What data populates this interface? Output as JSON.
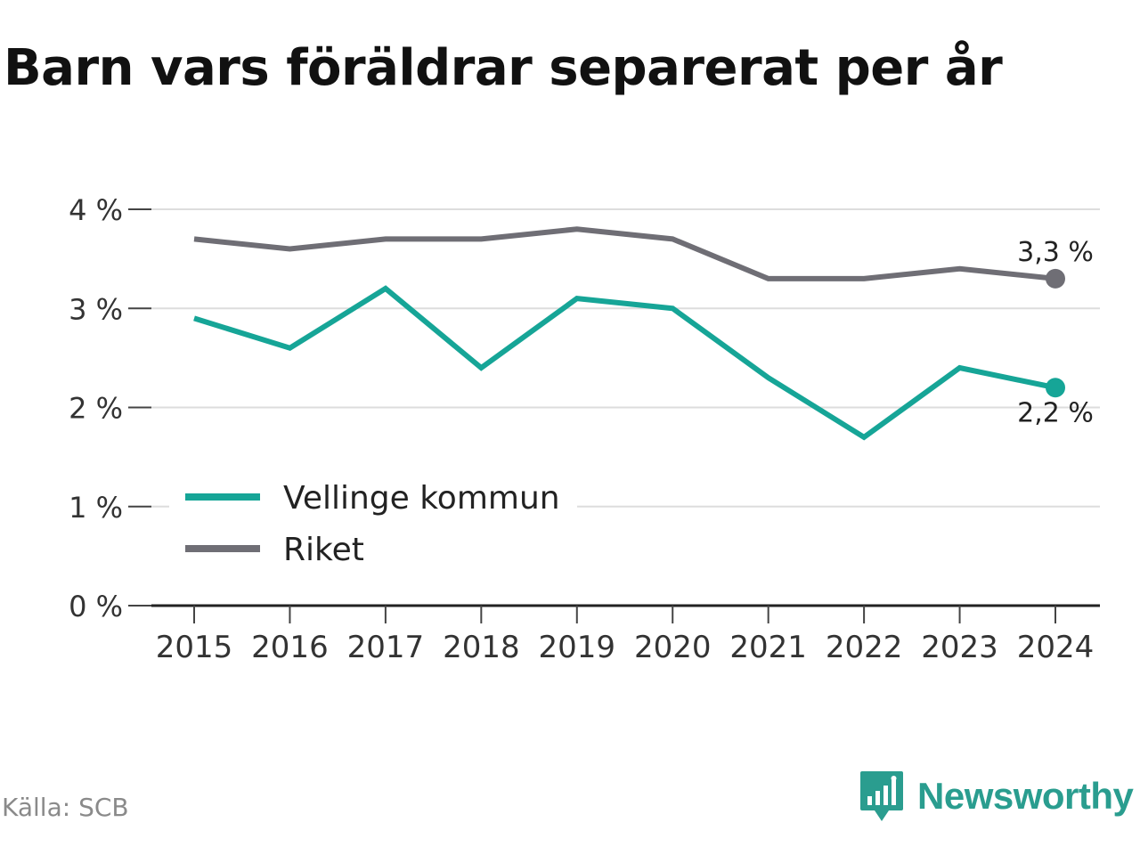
{
  "title": "Barn vars föräldrar separerat per år",
  "source": "Källa: SCB",
  "brand": {
    "name": "Newsworthy",
    "icon": "newsworthy-logo-icon",
    "color": "#2a9d8f"
  },
  "chart_data": {
    "type": "line",
    "title": "Barn vars föräldrar separerat per år",
    "xlabel": "",
    "ylabel": "",
    "x": [
      "2015",
      "2016",
      "2017",
      "2018",
      "2019",
      "2020",
      "2021",
      "2022",
      "2023",
      "2024"
    ],
    "ylim": [
      0,
      4
    ],
    "y_ticks": [
      {
        "value": 0,
        "label": "0 %"
      },
      {
        "value": 1,
        "label": "1 %"
      },
      {
        "value": 2,
        "label": "2 %"
      },
      {
        "value": 3,
        "label": "3 %"
      },
      {
        "value": 4,
        "label": "4 %"
      }
    ],
    "grid": "horizontal",
    "legend_position": "lower-left",
    "series": [
      {
        "name": "Vellinge kommun",
        "color": "#16a597",
        "values": [
          2.9,
          2.6,
          3.2,
          2.4,
          3.1,
          3.0,
          2.3,
          1.7,
          2.4,
          2.2
        ],
        "end_label": "2,2 %"
      },
      {
        "name": "Riket",
        "color": "#6f6e75",
        "values": [
          3.7,
          3.6,
          3.7,
          3.7,
          3.8,
          3.7,
          3.3,
          3.3,
          3.4,
          3.3
        ],
        "end_label": "3,3 %"
      }
    ]
  }
}
